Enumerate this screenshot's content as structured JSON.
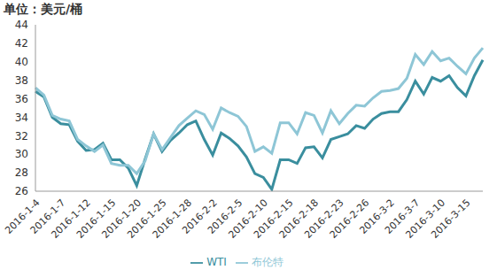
{
  "chart_data": {
    "type": "line",
    "title": "单位：美元/桶",
    "categories": [
      "2016-1-4",
      null,
      null,
      "2016-1-7",
      null,
      null,
      "2016-1-12",
      null,
      null,
      "2016-1-15",
      null,
      null,
      "2016-1-20",
      null,
      null,
      "2016-1-25",
      null,
      null,
      "2016-1-28",
      null,
      null,
      "2016-2-2",
      null,
      null,
      "2016-2-5",
      null,
      null,
      "2016-2-10",
      null,
      null,
      "2016-2-15",
      null,
      null,
      "2016-2-18",
      null,
      null,
      "2016-2-23",
      null,
      null,
      "2016-2-26",
      null,
      null,
      "2016-3-2",
      null,
      null,
      "2016-3-7",
      null,
      null,
      "2016-3-10",
      null,
      null,
      "2016-3-15",
      null,
      null
    ],
    "series": [
      {
        "name": "WTI",
        "color": "#3a8e9e",
        "values": [
          36.8,
          36.2,
          34.0,
          33.3,
          33.2,
          31.4,
          30.4,
          30.5,
          31.2,
          29.4,
          29.4,
          28.5,
          26.6,
          29.5,
          32.2,
          30.3,
          31.5,
          32.3,
          33.2,
          33.6,
          31.6,
          29.9,
          32.3,
          31.7,
          30.9,
          29.7,
          27.9,
          27.5,
          26.2,
          29.4,
          29.4,
          29.0,
          30.7,
          30.8,
          29.6,
          31.6,
          31.9,
          32.2,
          33.1,
          32.8,
          33.8,
          34.4,
          34.6,
          34.6,
          35.9,
          37.9,
          36.5,
          38.3,
          37.9,
          38.5,
          37.2,
          36.3,
          38.5,
          40.2
        ]
      },
      {
        "name": "布伦特",
        "color": "#8ec6d6",
        "values": [
          37.2,
          36.4,
          34.2,
          33.8,
          33.6,
          31.6,
          30.9,
          30.3,
          31.0,
          29.0,
          28.8,
          28.8,
          27.9,
          29.3,
          32.2,
          30.5,
          31.8,
          33.1,
          33.9,
          34.7,
          34.3,
          32.7,
          35.0,
          34.5,
          34.1,
          33.0,
          30.3,
          30.8,
          30.1,
          33.4,
          33.4,
          32.2,
          34.5,
          34.2,
          32.3,
          34.7,
          33.3,
          34.4,
          35.3,
          35.2,
          36.1,
          36.8,
          36.9,
          37.1,
          38.2,
          40.8,
          39.7,
          41.1,
          40.1,
          40.4,
          39.5,
          38.7,
          40.4,
          41.5
        ]
      }
    ],
    "ylim": [
      26,
      44
    ],
    "yticks": [
      26,
      28,
      30,
      32,
      34,
      36,
      38,
      40,
      42,
      44
    ],
    "grid": false,
    "legend": "bottom"
  }
}
